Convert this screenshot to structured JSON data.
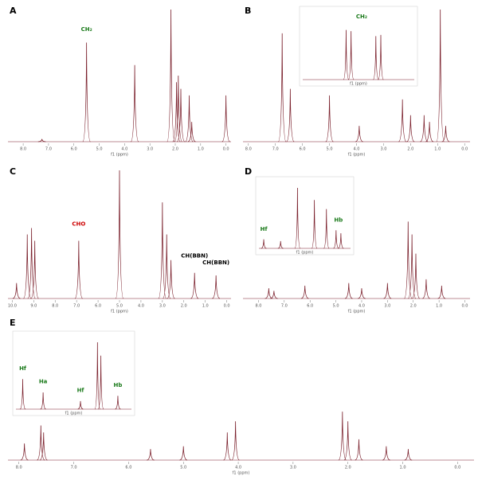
{
  "chart_data": [
    {
      "type": "nmr",
      "label": "A",
      "xlabel": "f1 (ppm)",
      "color": "#7a1f2b",
      "xlim": [
        8.6,
        -0.2
      ],
      "ylim": [
        0,
        100
      ],
      "xticks": [
        {
          "value": 8,
          "label": "8.0"
        },
        {
          "value": 7,
          "label": "7.0"
        },
        {
          "value": 6,
          "label": "6.0"
        },
        {
          "value": 5,
          "label": "5.0"
        },
        {
          "value": 4,
          "label": "4.0"
        },
        {
          "value": 3,
          "label": "3.0"
        },
        {
          "value": 2,
          "label": "2.0"
        },
        {
          "value": 1,
          "label": "1.0"
        },
        {
          "value": 0,
          "label": "0.0"
        }
      ],
      "x": [
        7.26,
        5.5,
        3.6,
        2.17,
        1.95,
        1.88,
        1.78,
        1.45,
        1.35,
        0.0
      ],
      "values": [
        2,
        75,
        58,
        100,
        45,
        50,
        40,
        35,
        15,
        35
      ],
      "annotations": [
        {
          "text": "CH₂",
          "x": 5.5,
          "y": 82,
          "color": "#1a7a1a"
        }
      ]
    },
    {
      "type": "nmr",
      "label": "B",
      "xlabel": "f1 (ppm)",
      "color": "#7a1f2b",
      "xlim": [
        8.2,
        -0.2
      ],
      "ylim": [
        0,
        100
      ],
      "xticks": [
        {
          "value": 8,
          "label": "8.0"
        },
        {
          "value": 7,
          "label": "7.0"
        },
        {
          "value": 6,
          "label": "6.0"
        },
        {
          "value": 5,
          "label": "5.0"
        },
        {
          "value": 4,
          "label": "4.0"
        },
        {
          "value": 3,
          "label": "3.0"
        },
        {
          "value": 2,
          "label": "2.0"
        },
        {
          "value": 1,
          "label": "1.0"
        },
        {
          "value": 0,
          "label": "0.0"
        }
      ],
      "x": [
        6.75,
        6.45,
        5.0,
        3.9,
        2.3,
        2.0,
        1.5,
        1.3,
        0.9,
        0.7
      ],
      "values": [
        82,
        40,
        35,
        12,
        32,
        20,
        20,
        15,
        100,
        12
      ],
      "annotations": [],
      "inset": {
        "xlim": [
          7.9,
          6.1
        ],
        "ylim": [
          0,
          100
        ],
        "x": [
          7.2,
          7.12,
          6.72,
          6.64
        ],
        "values": [
          80,
          78,
          70,
          72
        ],
        "annotations": [
          {
            "text": "CH₂",
            "x": 6.95,
            "y": 95,
            "color": "#1a7a1a"
          }
        ]
      }
    },
    {
      "type": "nmr",
      "label": "C",
      "xlabel": "f1 (ppm)",
      "color": "#7a1f2b",
      "xlim": [
        10.2,
        -0.2
      ],
      "ylim": [
        0,
        100
      ],
      "xticks": [
        {
          "value": 10,
          "label": "10.0"
        },
        {
          "value": 9,
          "label": "9.0"
        },
        {
          "value": 8,
          "label": "8.0"
        },
        {
          "value": 7,
          "label": "7.0"
        },
        {
          "value": 6,
          "label": "6.0"
        },
        {
          "value": 5,
          "label": "5.0"
        },
        {
          "value": 4,
          "label": "4.0"
        },
        {
          "value": 3,
          "label": "3.0"
        },
        {
          "value": 2,
          "label": "2.0"
        },
        {
          "value": 1,
          "label": "1.0"
        },
        {
          "value": 0,
          "label": "0.0"
        }
      ],
      "x": [
        9.8,
        9.3,
        9.1,
        8.95,
        6.9,
        5.0,
        3.0,
        2.8,
        2.6,
        1.5,
        0.5
      ],
      "values": [
        12,
        50,
        55,
        45,
        45,
        100,
        75,
        50,
        30,
        20,
        18
      ],
      "annotations": [
        {
          "text": "CHO",
          "x": 6.9,
          "y": 55,
          "color": "#cc0000"
        },
        {
          "text": "CH(BBN)",
          "x": 1.5,
          "y": 30,
          "color": "#000"
        },
        {
          "text": "CH(BBN)",
          "x": 0.5,
          "y": 25,
          "color": "#000"
        }
      ]
    },
    {
      "type": "nmr",
      "label": "D",
      "xlabel": "f1 (ppm)",
      "color": "#7a1f2b",
      "xlim": [
        8.6,
        -0.2
      ],
      "ylim": [
        0,
        100
      ],
      "xticks": [
        {
          "value": 8,
          "label": "8.0"
        },
        {
          "value": 7,
          "label": "7.0"
        },
        {
          "value": 6,
          "label": "6.0"
        },
        {
          "value": 5,
          "label": "5.0"
        },
        {
          "value": 4,
          "label": "4.0"
        },
        {
          "value": 3,
          "label": "3.0"
        },
        {
          "value": 2,
          "label": "2.0"
        },
        {
          "value": 1,
          "label": "1.0"
        },
        {
          "value": 0,
          "label": "0.0"
        }
      ],
      "x": [
        7.6,
        7.4,
        6.2,
        4.5,
        4.0,
        3.0,
        2.2,
        2.05,
        1.9,
        1.5,
        0.9
      ],
      "values": [
        8,
        6,
        10,
        12,
        8,
        12,
        60,
        50,
        35,
        15,
        10
      ],
      "annotations": [],
      "inset": {
        "xlim": [
          4.8,
          2.9
        ],
        "ylim": [
          0,
          100
        ],
        "x": [
          4.7,
          4.35,
          4.0,
          3.65,
          3.4,
          3.2,
          3.1
        ],
        "values": [
          15,
          12,
          100,
          80,
          65,
          30,
          25
        ],
        "annotations": [
          {
            "text": "Hf",
            "x": 4.7,
            "y": 25,
            "color": "#1a7a1a"
          },
          {
            "text": "Hb",
            "x": 3.15,
            "y": 40,
            "color": "#1a7a1a"
          }
        ]
      }
    },
    {
      "type": "nmr",
      "label": "E",
      "xlabel": "f1 (ppm)",
      "color": "#7a1f2b",
      "xlim": [
        8.2,
        -0.3
      ],
      "ylim": [
        0,
        100
      ],
      "xticks": [
        {
          "value": 8,
          "label": "8.0"
        },
        {
          "value": 7,
          "label": "7.0"
        },
        {
          "value": 6,
          "label": "6.0"
        },
        {
          "value": 5,
          "label": "5.0"
        },
        {
          "value": 4,
          "label": "4.0"
        },
        {
          "value": 3,
          "label": "3.0"
        },
        {
          "value": 2,
          "label": "2.0"
        },
        {
          "value": 1,
          "label": "1.0"
        },
        {
          "value": 0,
          "label": "0.0"
        }
      ],
      "x": [
        7.9,
        7.6,
        7.55,
        5.6,
        5.0,
        4.2,
        4.05,
        2.1,
        2.0,
        1.8,
        1.3,
        0.9
      ],
      "values": [
        12,
        25,
        20,
        8,
        10,
        20,
        28,
        35,
        28,
        15,
        10,
        8
      ],
      "annotations": [],
      "inset": {
        "xlim": [
          4.8,
          3.1
        ],
        "ylim": [
          0,
          100
        ],
        "x": [
          4.7,
          4.4,
          3.85,
          3.6,
          3.55,
          3.3
        ],
        "values": [
          45,
          25,
          12,
          100,
          80,
          20
        ],
        "annotations": [
          {
            "text": "Hf",
            "x": 4.7,
            "y": 55,
            "color": "#1a7a1a"
          },
          {
            "text": "Ha",
            "x": 4.4,
            "y": 35,
            "color": "#1a7a1a"
          },
          {
            "text": "Hf",
            "x": 3.85,
            "y": 22,
            "color": "#1a7a1a"
          },
          {
            "text": "Hb",
            "x": 3.3,
            "y": 30,
            "color": "#1a7a1a"
          }
        ]
      }
    }
  ]
}
